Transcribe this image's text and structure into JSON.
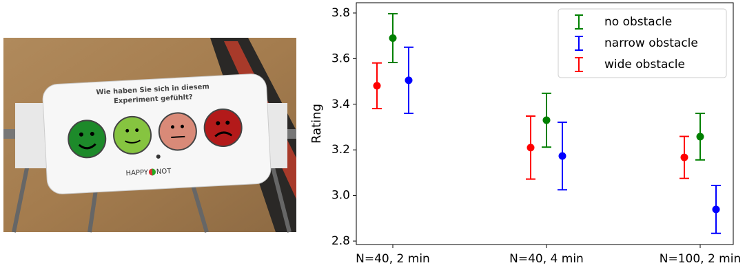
{
  "photo": {
    "question": [
      "Wie haben Sie sich in diesem",
      "Experiment gefühlt?"
    ],
    "brand": [
      "HAPPY",
      "NOT"
    ]
  },
  "chart_data": {
    "type": "errorbar",
    "categories": [
      "N=40, 2 min",
      "N=40, 4 min",
      "N=100, 2 min"
    ],
    "y_label": "Rating",
    "ylim": [
      2.785,
      3.845
    ],
    "yticks": [
      2.8,
      {
        "value": 3.0,
        "label": "3.0"
      },
      3.2,
      3.4,
      3.6,
      3.8
    ],
    "legend": "upper right",
    "series": [
      {
        "name": "no obstacle",
        "color": "#008000",
        "values": [
          3.69,
          3.33,
          3.258
        ],
        "errors": [
          0.107,
          0.118,
          0.102
        ]
      },
      {
        "name": "narrow obstacle",
        "color": "#0000ff",
        "values": [
          3.505,
          3.173,
          2.939
        ],
        "errors": [
          0.145,
          0.148,
          0.105
        ]
      },
      {
        "name": "wide obstacle",
        "color": "#ff0000",
        "values": [
          3.481,
          3.21,
          3.167
        ],
        "errors": [
          0.1,
          0.138,
          0.092
        ]
      }
    ]
  }
}
